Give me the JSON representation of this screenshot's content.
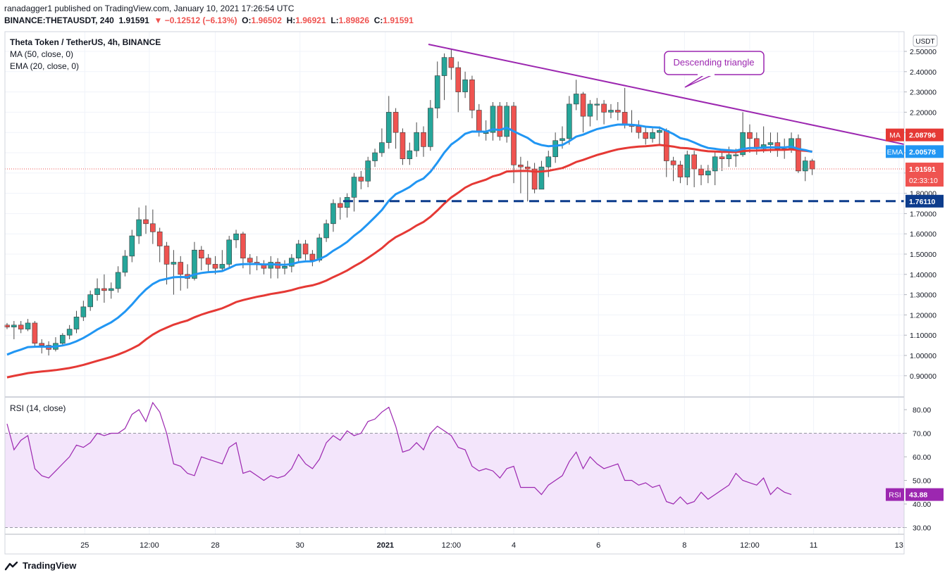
{
  "header": {
    "line1": "ranadagger1 published on TradingView.com, January 10, 2021 17:26:54 UTC",
    "symbol": "BINANCE:THETAUSDT, 240",
    "price": "1.91591",
    "change": "▼ −0.12512 (−6.13%)",
    "o_label": "O:",
    "o": "1.96502",
    "h_label": "H:",
    "h": "1.96921",
    "l_label": "L:",
    "l": "1.89826",
    "c_label": "C:",
    "c": "1.91591"
  },
  "legend": {
    "title": "Theta Token / TetherUS, 4h, BINANCE",
    "ma": "MA (50, close, 0)",
    "ema": "EMA (20, close, 0)"
  },
  "annotation": "Descending triangle",
  "currency": "USDT",
  "price_tags": {
    "ma_label": "MA",
    "ma_value": "2.08796",
    "ema_label": "EMA",
    "ema_value": "2.00578",
    "last": "1.91591",
    "countdown": "02:33:10",
    "support": "1.76110"
  },
  "rsi": {
    "title": "RSI (14, close)",
    "tag_label": "RSI",
    "tag_value": "43.88"
  },
  "footer": {
    "brand": "TradingView"
  },
  "colors": {
    "up": "#26a69a",
    "down": "#ef5350",
    "ma": "#e53935",
    "ema": "#2196f3",
    "trendline": "#9c27b0",
    "support": "#0d3c8c",
    "rsi_line": "#9c27b0",
    "rsi_band": "#f3e5fb"
  },
  "chart_data": [
    {
      "type": "candlestick",
      "title": "Theta Token / TetherUS, 4h, BINANCE",
      "ylim": [
        0.82,
        2.53
      ],
      "y_ticks": [
        "2.50000",
        "2.40000",
        "2.30000",
        "2.20000",
        "2.10000",
        "2.00000",
        "1.90000",
        "1.80000",
        "1.70000",
        "1.60000",
        "1.50000",
        "1.40000",
        "1.30000",
        "1.20000",
        "1.10000",
        "1.00000",
        "0.90000"
      ],
      "x_ticks": [
        "25",
        "12:00",
        "28",
        "30",
        "2021",
        "12:00",
        "4",
        "6",
        "8",
        "12:00",
        "11",
        "13"
      ],
      "grid": true,
      "support_level": 1.7611,
      "trendline": [
        [
          1,
          2.52
        ],
        [
          108,
          2.05
        ]
      ],
      "candles": [
        [
          1.15,
          1.14,
          1.16,
          1.13
        ],
        [
          1.14,
          1.15,
          1.17,
          1.08
        ],
        [
          1.15,
          1.13,
          1.17,
          1.11
        ],
        [
          1.13,
          1.16,
          1.18,
          1.12
        ],
        [
          1.16,
          1.06,
          1.17,
          1.04
        ],
        [
          1.06,
          1.05,
          1.08,
          1.01
        ],
        [
          1.05,
          1.03,
          1.07,
          1.0
        ],
        [
          1.03,
          1.06,
          1.09,
          1.02
        ],
        [
          1.06,
          1.1,
          1.11,
          1.05
        ],
        [
          1.1,
          1.13,
          1.15,
          1.08
        ],
        [
          1.13,
          1.19,
          1.22,
          1.11
        ],
        [
          1.19,
          1.24,
          1.27,
          1.17
        ],
        [
          1.24,
          1.3,
          1.32,
          1.22
        ],
        [
          1.3,
          1.33,
          1.38,
          1.27
        ],
        [
          1.33,
          1.32,
          1.4,
          1.26
        ],
        [
          1.32,
          1.33,
          1.36,
          1.28
        ],
        [
          1.33,
          1.41,
          1.44,
          1.31
        ],
        [
          1.41,
          1.49,
          1.52,
          1.39
        ],
        [
          1.49,
          1.59,
          1.62,
          1.46
        ],
        [
          1.59,
          1.67,
          1.73,
          1.55
        ],
        [
          1.67,
          1.65,
          1.74,
          1.6
        ],
        [
          1.65,
          1.61,
          1.72,
          1.55
        ],
        [
          1.61,
          1.54,
          1.63,
          1.46
        ],
        [
          1.54,
          1.45,
          1.56,
          1.35
        ],
        [
          1.45,
          1.46,
          1.52,
          1.3
        ],
        [
          1.46,
          1.4,
          1.49,
          1.32
        ],
        [
          1.4,
          1.38,
          1.45,
          1.33
        ],
        [
          1.38,
          1.52,
          1.56,
          1.37
        ],
        [
          1.52,
          1.48,
          1.54,
          1.42
        ],
        [
          1.48,
          1.45,
          1.5,
          1.41
        ],
        [
          1.45,
          1.43,
          1.49,
          1.4
        ],
        [
          1.43,
          1.45,
          1.52,
          1.42
        ],
        [
          1.45,
          1.57,
          1.59,
          1.43
        ],
        [
          1.57,
          1.6,
          1.62,
          1.53
        ],
        [
          1.6,
          1.48,
          1.61,
          1.43
        ],
        [
          1.48,
          1.46,
          1.5,
          1.4
        ],
        [
          1.46,
          1.45,
          1.49,
          1.42
        ],
        [
          1.45,
          1.43,
          1.47,
          1.4
        ],
        [
          1.43,
          1.46,
          1.49,
          1.38
        ],
        [
          1.46,
          1.43,
          1.48,
          1.38
        ],
        [
          1.43,
          1.44,
          1.47,
          1.4
        ],
        [
          1.44,
          1.48,
          1.5,
          1.41
        ],
        [
          1.48,
          1.55,
          1.57,
          1.46
        ],
        [
          1.55,
          1.5,
          1.57,
          1.47
        ],
        [
          1.5,
          1.47,
          1.52,
          1.44
        ],
        [
          1.47,
          1.58,
          1.6,
          1.46
        ],
        [
          1.58,
          1.65,
          1.67,
          1.56
        ],
        [
          1.65,
          1.75,
          1.77,
          1.61
        ],
        [
          1.75,
          1.73,
          1.78,
          1.67
        ],
        [
          1.73,
          1.78,
          1.8,
          1.68
        ],
        [
          1.78,
          1.88,
          1.9,
          1.71
        ],
        [
          1.88,
          1.86,
          1.91,
          1.82
        ],
        [
          1.86,
          1.96,
          1.98,
          1.83
        ],
        [
          1.96,
          2.0,
          2.02,
          1.93
        ],
        [
          2.0,
          2.05,
          2.12,
          1.98
        ],
        [
          2.05,
          2.2,
          2.28,
          2.02
        ],
        [
          2.2,
          2.1,
          2.22,
          2.02
        ],
        [
          2.1,
          1.97,
          2.12,
          1.94
        ],
        [
          1.97,
          2.01,
          2.05,
          1.94
        ],
        [
          2.01,
          2.1,
          2.15,
          1.98
        ],
        [
          2.1,
          2.03,
          2.13,
          1.98
        ],
        [
          2.03,
          2.22,
          2.26,
          2.01
        ],
        [
          2.22,
          2.38,
          2.45,
          2.17
        ],
        [
          2.38,
          2.47,
          2.49,
          2.26
        ],
        [
          2.47,
          2.42,
          2.51,
          2.36
        ],
        [
          2.42,
          2.3,
          2.45,
          2.2
        ],
        [
          2.3,
          2.36,
          2.4,
          2.27
        ],
        [
          2.36,
          2.21,
          2.38,
          2.17
        ],
        [
          2.21,
          2.1,
          2.24,
          2.08
        ],
        [
          2.1,
          2.1,
          2.16,
          2.06
        ],
        [
          2.1,
          2.23,
          2.25,
          2.06
        ],
        [
          2.23,
          2.08,
          2.25,
          2.06
        ],
        [
          2.08,
          2.23,
          2.25,
          2.05
        ],
        [
          2.23,
          1.94,
          2.25,
          1.85
        ],
        [
          1.94,
          1.93,
          1.98,
          1.8
        ],
        [
          1.93,
          1.92,
          1.96,
          1.76
        ],
        [
          1.92,
          1.82,
          1.95,
          1.8
        ],
        [
          1.82,
          1.93,
          1.96,
          1.82
        ],
        [
          1.93,
          1.98,
          2.01,
          1.88
        ],
        [
          1.98,
          2.06,
          2.1,
          1.95
        ],
        [
          2.06,
          2.07,
          2.13,
          2.02
        ],
        [
          2.07,
          2.24,
          2.28,
          2.04
        ],
        [
          2.24,
          2.29,
          2.36,
          2.21
        ],
        [
          2.29,
          2.18,
          2.3,
          2.1
        ],
        [
          2.18,
          2.24,
          2.26,
          2.13
        ],
        [
          2.24,
          2.24,
          2.27,
          2.16
        ],
        [
          2.24,
          2.2,
          2.26,
          2.14
        ],
        [
          2.2,
          2.21,
          2.24,
          2.17
        ],
        [
          2.21,
          2.2,
          2.25,
          2.16
        ],
        [
          2.2,
          2.14,
          2.32,
          2.12
        ],
        [
          2.14,
          2.13,
          2.21,
          2.1
        ],
        [
          2.13,
          2.1,
          2.16,
          2.07
        ],
        [
          2.1,
          2.07,
          2.13,
          2.04
        ],
        [
          2.07,
          2.1,
          2.12,
          2.05
        ],
        [
          2.1,
          2.11,
          2.13,
          2.04
        ],
        [
          2.11,
          1.96,
          2.12,
          1.88
        ],
        [
          1.96,
          1.94,
          1.98,
          1.86
        ],
        [
          1.94,
          1.88,
          1.96,
          1.85
        ],
        [
          1.88,
          1.99,
          2.01,
          1.84
        ],
        [
          1.99,
          1.92,
          2.01,
          1.83
        ],
        [
          1.92,
          1.89,
          1.94,
          1.84
        ],
        [
          1.89,
          1.91,
          1.94,
          1.85
        ],
        [
          1.91,
          1.98,
          2.01,
          1.84
        ],
        [
          1.98,
          1.97,
          2.0,
          1.91
        ],
        [
          1.97,
          1.99,
          2.03,
          1.93
        ],
        [
          1.99,
          1.99,
          2.02,
          1.93
        ],
        [
          1.99,
          2.1,
          2.2,
          1.98
        ],
        [
          2.1,
          2.07,
          2.14,
          2.0
        ],
        [
          2.07,
          2.02,
          2.1,
          1.99
        ],
        [
          2.02,
          2.04,
          2.13,
          2.0
        ],
        [
          2.04,
          2.05,
          2.1,
          2.0
        ],
        [
          2.05,
          2.02,
          2.1,
          1.98
        ],
        [
          2.02,
          2.02,
          2.07,
          1.97
        ],
        [
          2.02,
          2.07,
          2.1,
          2.0
        ],
        [
          2.07,
          1.91,
          2.09,
          1.9
        ],
        [
          1.91,
          1.96,
          1.98,
          1.86
        ],
        [
          1.96,
          1.92,
          1.97,
          1.89
        ]
      ],
      "series": [
        {
          "name": "MA (50, close, 0)",
          "last": 2.08796
        },
        {
          "name": "EMA (20, close, 0)",
          "last": 2.00578
        }
      ]
    },
    {
      "type": "line",
      "title": "RSI (14, close)",
      "ylim": [
        27,
        84
      ],
      "y_ticks": [
        "80.00",
        "70.00",
        "60.00",
        "50.00",
        "40.00",
        "30.00"
      ],
      "band": [
        30,
        70
      ],
      "values": [
        74,
        63,
        67,
        69,
        55,
        52,
        51,
        54,
        57,
        60,
        65,
        64,
        66,
        70,
        69,
        70,
        70,
        72,
        78,
        80,
        75,
        83,
        79,
        70,
        57,
        56,
        53,
        52,
        60,
        59,
        58,
        57,
        64,
        66,
        53,
        54,
        52,
        50,
        52,
        51,
        52,
        55,
        61,
        57,
        55,
        59,
        66,
        69,
        67,
        71,
        69,
        70,
        75,
        76,
        79,
        81,
        73,
        62,
        63,
        66,
        63,
        70,
        73,
        71,
        69,
        64,
        63,
        56,
        54,
        55,
        54,
        51,
        55,
        56,
        47,
        47,
        47,
        44,
        48,
        50,
        52,
        58,
        62,
        55,
        60,
        57,
        55,
        56,
        57,
        50,
        50,
        48,
        49,
        47,
        48,
        41,
        40,
        43,
        40,
        41,
        45,
        42,
        44,
        46,
        48,
        53,
        50,
        49,
        48,
        51,
        44,
        47,
        45,
        44
      ]
    }
  ]
}
